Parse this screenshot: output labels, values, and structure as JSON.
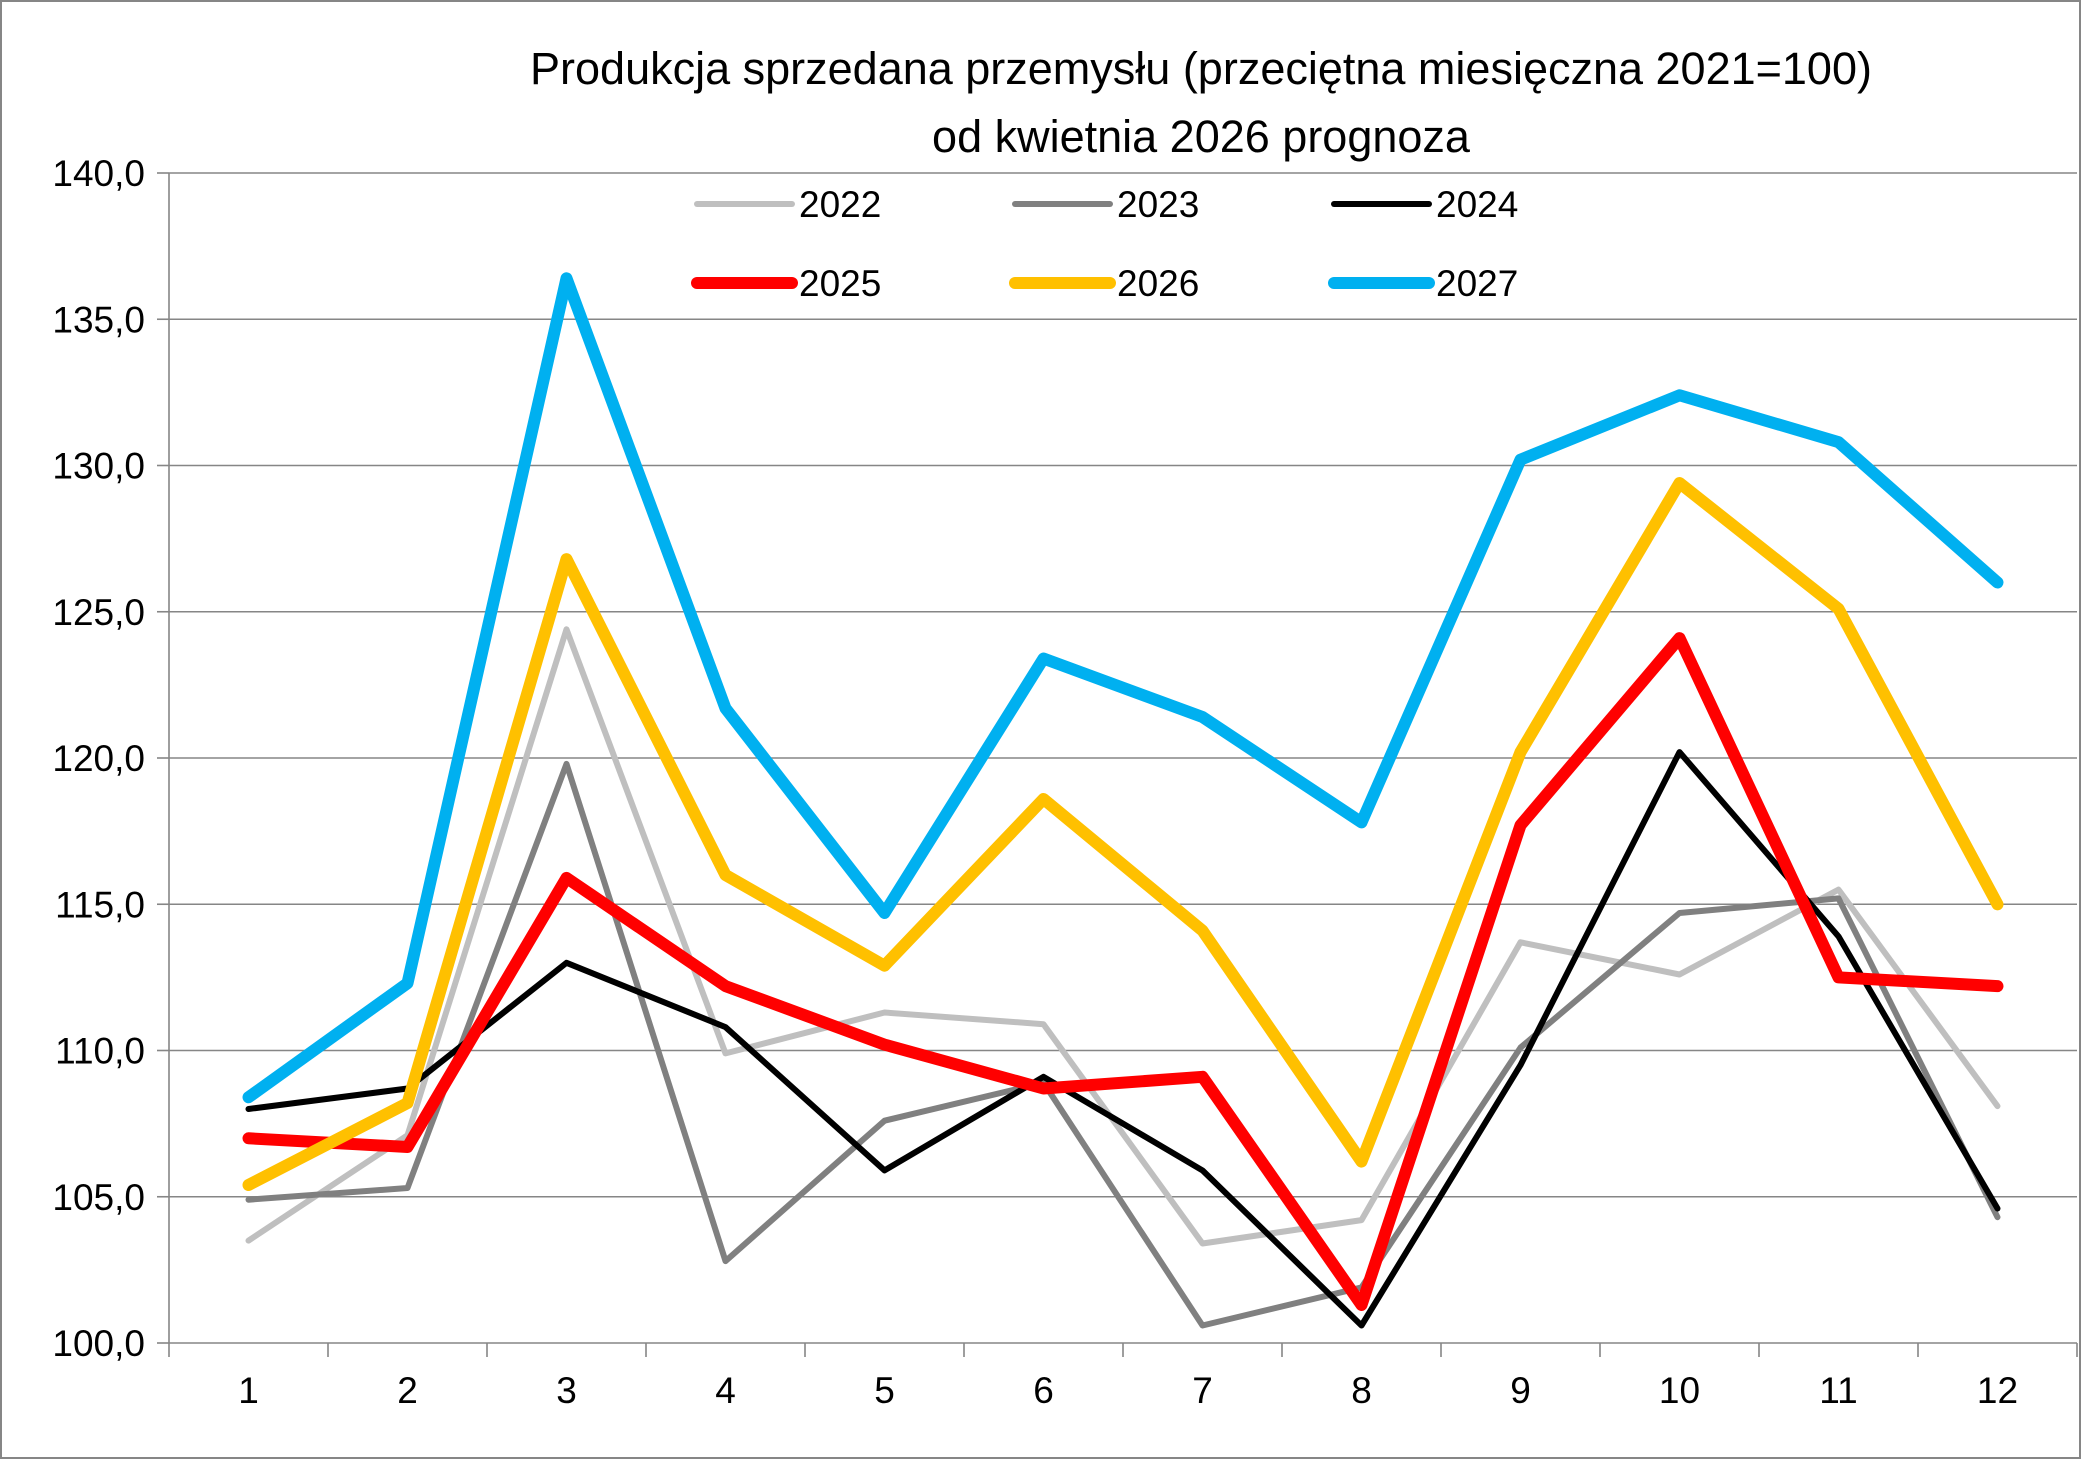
{
  "chart_data": {
    "type": "line",
    "title": "Produkcja sprzedana przemysłu (przeciętna miesięczna 2021=100)",
    "subtitle": "od kwietnia 2026 prognoza",
    "xlabel": "",
    "ylabel": "",
    "categories": [
      "1",
      "2",
      "3",
      "4",
      "5",
      "6",
      "7",
      "8",
      "9",
      "10",
      "11",
      "12"
    ],
    "ylim": [
      100,
      140
    ],
    "yticks": [
      100,
      105,
      110,
      115,
      120,
      125,
      130,
      135,
      140
    ],
    "ytick_labels": [
      "100,0",
      "105,0",
      "110,0",
      "115,0",
      "120,0",
      "125,0",
      "130,0",
      "135,0",
      "140,0"
    ],
    "grid": "horizontal",
    "legend_placement": "top-center",
    "series": [
      {
        "name": "2022",
        "color": "#bfbfbf",
        "values": [
          103.5,
          107.1,
          124.4,
          109.9,
          111.3,
          110.9,
          103.4,
          104.2,
          113.7,
          112.6,
          115.5,
          108.1
        ]
      },
      {
        "name": "2023",
        "color": "#808080",
        "values": [
          104.9,
          105.3,
          119.8,
          102.8,
          107.6,
          108.9,
          100.6,
          101.9,
          110.1,
          114.7,
          115.2,
          104.3
        ]
      },
      {
        "name": "2024",
        "color": "#000000",
        "values": [
          108.0,
          108.7,
          113.0,
          110.8,
          105.9,
          109.1,
          105.9,
          100.6,
          109.5,
          120.2,
          113.9,
          104.6
        ]
      },
      {
        "name": "2025",
        "color": "#ff0000",
        "values": [
          107.0,
          106.7,
          115.9,
          112.2,
          110.2,
          108.7,
          109.1,
          101.3,
          117.7,
          124.1,
          112.5,
          112.2
        ]
      },
      {
        "name": "2026",
        "color": "#ffc000",
        "values": [
          105.4,
          108.2,
          126.8,
          116.0,
          112.9,
          118.6,
          114.1,
          106.2,
          120.2,
          129.4,
          125.1,
          115.0
        ]
      },
      {
        "name": "2027",
        "color": "#00b0f0",
        "values": [
          108.4,
          112.3,
          136.4,
          121.7,
          114.7,
          123.4,
          121.4,
          117.8,
          130.2,
          132.4,
          130.8,
          126.0
        ]
      }
    ]
  }
}
